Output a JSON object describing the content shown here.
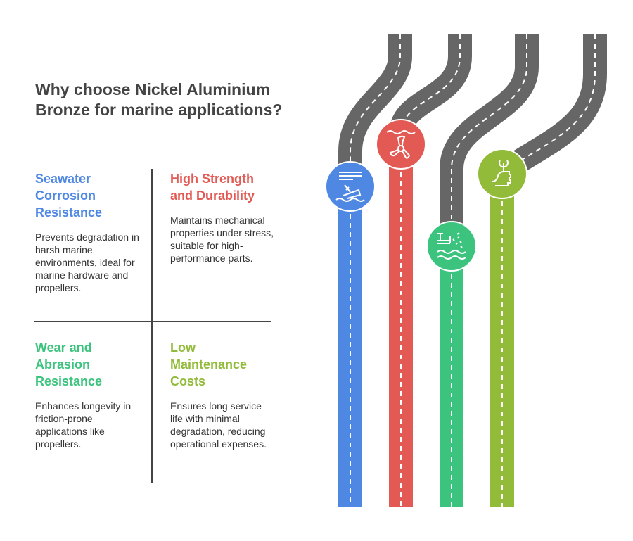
{
  "title": "Why choose Nickel Aluminium Bronze for marine applications?",
  "colors": {
    "blue": "#4F88E3",
    "red": "#E35A55",
    "green": "#3CC47F",
    "olive": "#92BB3A",
    "road": "#666666"
  },
  "quadrants": [
    {
      "heading": "Seawater Corrosion Resistance",
      "text": "Prevents degradation in harsh marine environments, ideal for marine hardware and propellers.",
      "color": "#4F88E3",
      "icon": "sinking-ship-icon"
    },
    {
      "heading": "High Strength and Durability",
      "text": "Maintains mechanical properties under stress, suitable for high-performance parts.",
      "color": "#E35A55",
      "icon": "propeller-icon"
    },
    {
      "heading": "Wear and Abrasion Resistance",
      "text": "Enhances longevity in friction-prone applications like propellers.",
      "color": "#3CC47F",
      "icon": "water-spray-icon"
    },
    {
      "heading": "Low Maintenance Costs",
      "text": "Ensures long service life with minimal degradation, reducing operational expenses.",
      "color": "#92BB3A",
      "icon": "wrench-thumbs-up-icon"
    }
  ]
}
